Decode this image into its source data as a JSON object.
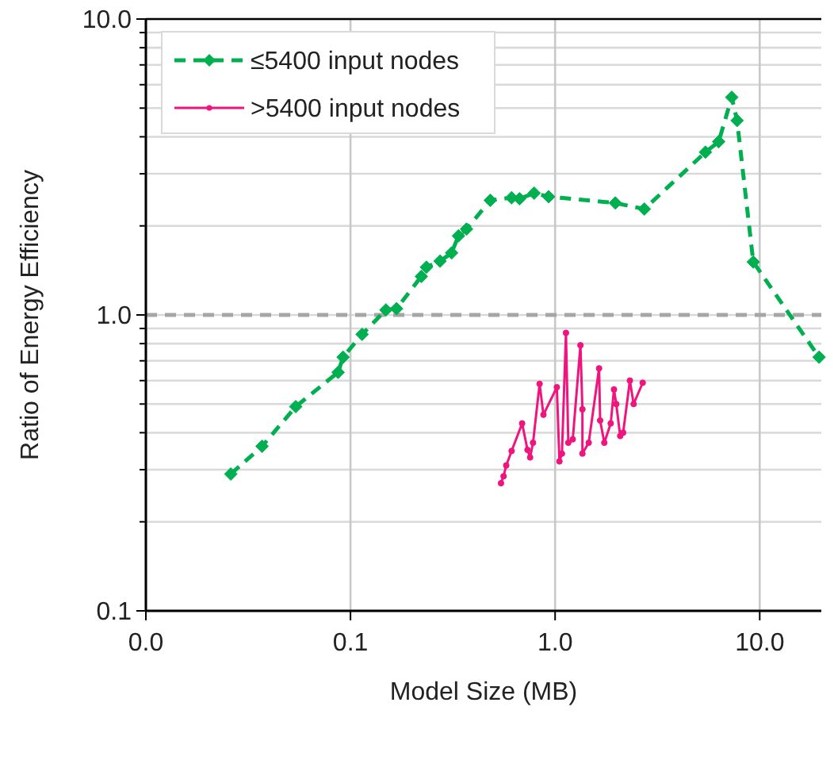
{
  "chart_data": {
    "type": "line",
    "xlabel": "Model Size (MB)",
    "ylabel": "Ratio of Energy Efficiency",
    "log": "xy",
    "grid": true,
    "legend": "top left",
    "xlim": [
      0.01,
      20
    ],
    "ylim": [
      0.1,
      10
    ],
    "xticks": [
      {
        "value": 0.01,
        "label": "0.0"
      },
      {
        "value": 0.1,
        "label": "0.1"
      },
      {
        "value": 1,
        "label": "1.0"
      },
      {
        "value": 10,
        "label": "10.0"
      }
    ],
    "yticks": [
      {
        "value": 0.1,
        "label": "0.1"
      },
      {
        "value": 0.2,
        "label": null
      },
      {
        "value": 0.3,
        "label": null
      },
      {
        "value": 0.4,
        "label": null
      },
      {
        "value": 0.5,
        "label": null
      },
      {
        "value": 0.6,
        "label": null
      },
      {
        "value": 0.7,
        "label": null
      },
      {
        "value": 0.8,
        "label": null
      },
      {
        "value": 0.9,
        "label": null
      },
      {
        "value": 1,
        "label": "1.0"
      },
      {
        "value": 2,
        "label": null
      },
      {
        "value": 3,
        "label": null
      },
      {
        "value": 4,
        "label": null
      },
      {
        "value": 5,
        "label": null
      },
      {
        "value": 6,
        "label": null
      },
      {
        "value": 7,
        "label": null
      },
      {
        "value": 8,
        "label": null
      },
      {
        "value": 9,
        "label": null
      },
      {
        "value": 10,
        "label": "10.0"
      }
    ],
    "ref_lines": [
      {
        "axis": "y",
        "value": 1,
        "color": "#a6a6a6",
        "line_style": "dashed"
      }
    ],
    "series": [
      {
        "name": "≤5400 input nodes",
        "color": "#00b050",
        "marker": "diamond",
        "line_style": "dashed",
        "x": [
          0.026,
          0.037,
          0.054,
          0.087,
          0.092,
          0.114,
          0.149,
          0.168,
          0.222,
          0.235,
          0.274,
          0.312,
          0.337,
          0.369,
          0.482,
          0.613,
          0.67,
          0.79,
          0.93,
          1.97,
          2.73,
          5.43,
          6.3,
          7.3,
          7.75,
          9.3,
          19.5
        ],
        "values": [
          0.29,
          0.36,
          0.49,
          0.64,
          0.72,
          0.86,
          1.04,
          1.05,
          1.35,
          1.45,
          1.52,
          1.62,
          1.85,
          1.95,
          2.44,
          2.49,
          2.47,
          2.58,
          2.51,
          2.39,
          2.28,
          3.55,
          3.85,
          5.44,
          4.54,
          1.51,
          0.72
        ]
      },
      {
        "name": ">5400 input nodes",
        "color": "#f0147e",
        "marker": "circle",
        "line_style": "solid",
        "x": [
          0.544,
          0.56,
          0.577,
          0.613,
          0.69,
          0.733,
          0.755,
          0.78,
          0.84,
          0.877,
          1.02,
          1.05,
          1.08,
          1.13,
          1.16,
          1.22,
          1.33,
          1.36,
          1.36,
          1.46,
          1.64,
          1.66,
          1.74,
          1.87,
          1.94,
          1.99,
          2.08,
          2.15,
          2.32,
          2.42,
          2.68
        ],
        "values": [
          0.27,
          0.285,
          0.31,
          0.347,
          0.43,
          0.35,
          0.33,
          0.37,
          0.585,
          0.46,
          0.57,
          0.32,
          0.34,
          0.87,
          0.37,
          0.38,
          0.79,
          0.48,
          0.34,
          0.37,
          0.66,
          0.44,
          0.37,
          0.43,
          0.56,
          0.5,
          0.39,
          0.4,
          0.6,
          0.5,
          0.59
        ]
      }
    ]
  }
}
